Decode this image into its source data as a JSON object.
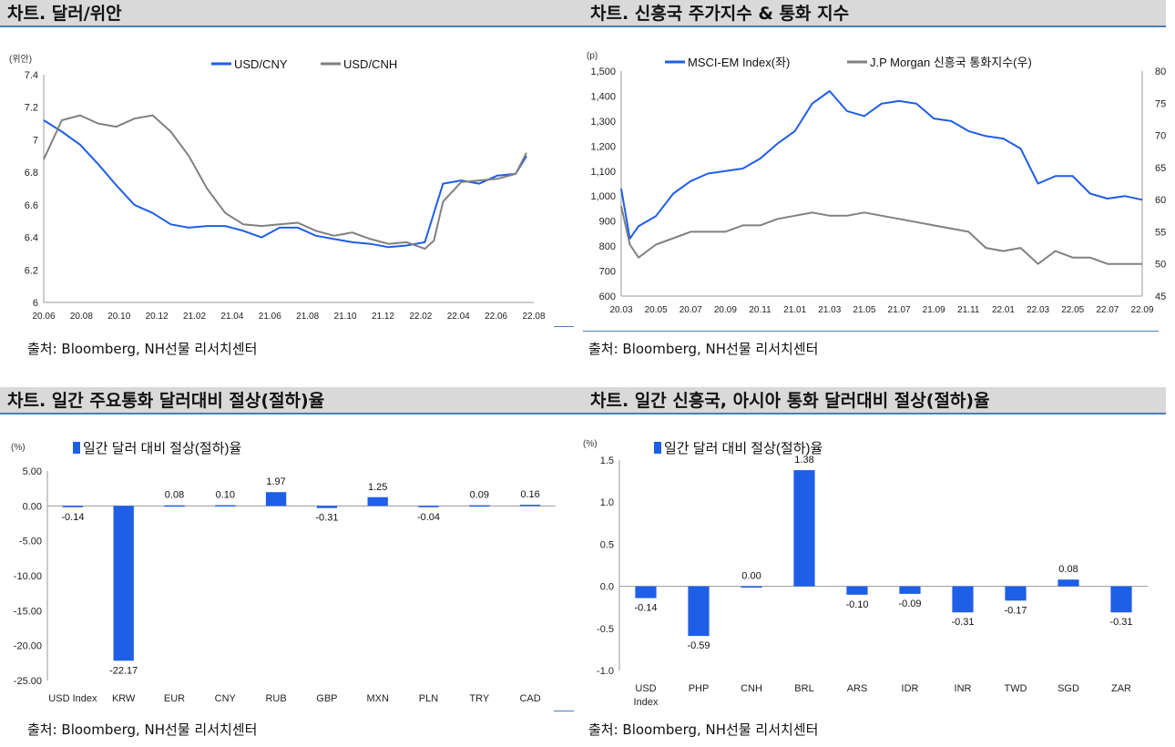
{
  "panels": [
    {
      "title": "차트. 달러/위안",
      "source": "출처: Bloomberg, NH선물 리서치센터",
      "chart_data": {
        "type": "line",
        "ylabel": "(위안)",
        "ylim": [
          6,
          7.4
        ],
        "yticks": [
          "7.4",
          "7.2",
          "7",
          "6.8",
          "6.6",
          "6.4",
          "6.2",
          "6"
        ],
        "xticks": [
          "20.06",
          "20.08",
          "20.10",
          "20.12",
          "21.02",
          "21.04",
          "21.06",
          "21.08",
          "21.10",
          "21.12",
          "22.02",
          "22.04",
          "22.06",
          "22.08"
        ],
        "x_range": [
          0,
          27
        ],
        "series": [
          {
            "name": "USD/CNY",
            "color": "#1f5ee6",
            "x": [
              0,
              1,
              2,
              3,
              4,
              5,
              6,
              7,
              8,
              9,
              10,
              11,
              12,
              13,
              14,
              15,
              16,
              17,
              18,
              19,
              20,
              20.5,
              21,
              22,
              23,
              24,
              25,
              26,
              26.6
            ],
            "y": [
              7.12,
              7.05,
              6.97,
              6.85,
              6.72,
              6.6,
              6.55,
              6.48,
              6.46,
              6.47,
              6.47,
              6.44,
              6.4,
              6.46,
              6.46,
              6.41,
              6.39,
              6.37,
              6.36,
              6.34,
              6.35,
              6.36,
              6.37,
              6.73,
              6.75,
              6.73,
              6.78,
              6.79,
              6.9
            ]
          },
          {
            "name": "USD/CNH",
            "color": "#808080",
            "x": [
              0,
              1,
              2,
              3,
              4,
              5,
              6,
              7,
              8,
              9,
              10,
              11,
              12,
              13,
              14,
              15,
              16,
              17,
              18,
              19,
              20,
              21,
              21.5,
              22,
              23,
              24,
              25,
              26,
              26.6
            ],
            "y": [
              6.88,
              7.12,
              7.15,
              7.1,
              7.08,
              7.13,
              7.15,
              7.05,
              6.9,
              6.7,
              6.55,
              6.48,
              6.47,
              6.48,
              6.49,
              6.44,
              6.41,
              6.43,
              6.39,
              6.36,
              6.37,
              6.33,
              6.38,
              6.62,
              6.74,
              6.75,
              6.76,
              6.79,
              6.92
            ]
          }
        ]
      }
    },
    {
      "title": "차트. 신흥국 주가지수 & 통화 지수",
      "source": "출처: Bloomberg, NH선물 리서치센터",
      "chart_data": {
        "type": "line",
        "ylabel": "(p)",
        "ylim": [
          600,
          1500
        ],
        "yticks": [
          "1,500",
          "1,400",
          "1,300",
          "1,200",
          "1,100",
          "1,000",
          "900",
          "800",
          "700",
          "600"
        ],
        "y2lim": [
          45,
          80
        ],
        "y2ticks": [
          "80",
          "75",
          "70",
          "65",
          "60",
          "55",
          "50",
          "45"
        ],
        "xticks": [
          "20.03",
          "20.05",
          "20.07",
          "20.09",
          "20.11",
          "21.01",
          "21.03",
          "21.05",
          "21.07",
          "21.09",
          "21.11",
          "22.01",
          "22.03",
          "22.05",
          "22.07",
          "22.09"
        ],
        "x_range": [
          0,
          30
        ],
        "series": [
          {
            "name": "MSCI-EM Index(좌)",
            "axis": "left",
            "color": "#1f5ee6",
            "x": [
              0,
              0.5,
              1,
              2,
              3,
              4,
              5,
              6,
              7,
              8,
              9,
              10,
              11,
              12,
              13,
              14,
              15,
              16,
              17,
              18,
              19,
              20,
              21,
              22,
              23,
              24,
              25,
              26,
              27,
              28,
              29,
              30
            ],
            "y": [
              1030,
              830,
              880,
              920,
              1010,
              1060,
              1090,
              1100,
              1110,
              1150,
              1210,
              1260,
              1370,
              1420,
              1340,
              1320,
              1370,
              1380,
              1370,
              1310,
              1300,
              1260,
              1240,
              1230,
              1190,
              1050,
              1080,
              1080,
              1010,
              990,
              1000,
              985
            ]
          },
          {
            "name": "J.P Morgan 신흥국 통화지수(우)",
            "axis": "right",
            "color": "#808080",
            "x": [
              0,
              0.5,
              1,
              2,
              3,
              4,
              5,
              6,
              7,
              8,
              9,
              10,
              11,
              12,
              13,
              14,
              15,
              16,
              17,
              18,
              19,
              20,
              21,
              22,
              23,
              24,
              25,
              26,
              27,
              28,
              29,
              30
            ],
            "y": [
              59,
              53,
              51,
              53,
              54,
              55,
              55,
              55,
              56,
              56,
              57,
              57.5,
              58,
              57.5,
              57.5,
              58,
              57.5,
              57,
              56.5,
              56,
              55.5,
              55,
              52.5,
              52,
              52.5,
              50,
              52,
              51,
              51,
              50,
              50,
              50
            ]
          }
        ]
      }
    },
    {
      "title": "차트. 일간 주요통화 달러대비 절상(절하)율",
      "source": "출처: Bloomberg, NH선물 리서치센터",
      "chart_data": {
        "type": "bar",
        "ylabel": "(%)",
        "legend": "일간 달러 대비 절상(절하)율",
        "ylim": [
          -25,
          5
        ],
        "yticks": [
          "5.00",
          "0.00",
          "-5.00",
          "-10.00",
          "-15.00",
          "-20.00",
          "-25.00"
        ],
        "categories": [
          "USD Index",
          "KRW",
          "EUR",
          "CNY",
          "RUB",
          "GBP",
          "MXN",
          "PLN",
          "TRY",
          "CAD"
        ],
        "values": [
          -0.14,
          -22.17,
          0.08,
          0.1,
          1.97,
          -0.31,
          1.25,
          -0.04,
          0.09,
          0.16
        ],
        "labels": [
          "-0.14",
          "-22.17",
          "0.08",
          "0.10",
          "1.97",
          "-0.31",
          "1.25",
          "-0.04",
          "0.09",
          "0.16"
        ],
        "bar_color": "#1f5ee6"
      }
    },
    {
      "title": "차트. 일간 신흥국, 아시아 통화 달러대비 절상(절하)율",
      "source": "출처: Bloomberg, NH선물 리서치센터",
      "chart_data": {
        "type": "bar",
        "ylabel": "(%)",
        "legend": "일간 달러 대비 절상(절하)율",
        "ylim": [
          -1,
          1.5
        ],
        "yticks": [
          "1.5",
          "1.0",
          "0.5",
          "0.0",
          "-0.5",
          "-1.0"
        ],
        "categories": [
          "USD Index",
          "PHP",
          "CNH",
          "BRL",
          "ARS",
          "IDR",
          "INR",
          "TWD",
          "SGD",
          "ZAR"
        ],
        "values": [
          -0.14,
          -0.59,
          0.0,
          1.38,
          -0.1,
          -0.09,
          -0.31,
          -0.17,
          0.08,
          -0.31
        ],
        "labels": [
          "-0.14",
          "-0.59",
          "0.00",
          "1.38",
          "-0.10",
          "-0.09",
          "-0.31",
          "-0.17",
          "0.08",
          "-0.31"
        ],
        "bar_color": "#1f5ee6"
      }
    }
  ]
}
